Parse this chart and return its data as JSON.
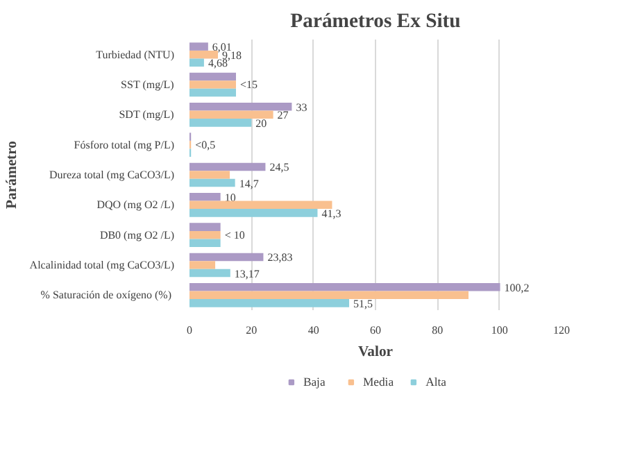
{
  "chart_data": {
    "type": "bar",
    "orientation": "horizontal",
    "title": "Parámetros Ex Situ",
    "xlabel": "Valor",
    "ylabel": "Parámetro",
    "categories": [
      "Turbiedad (NTU)",
      "SST (mg/L)",
      "SDT (mg/L)",
      "Fósforo total (mg P/L)",
      "Dureza total (mg CaCO3/L)",
      "DQO (mg O2 /L)",
      "DB0 (mg O2 /L)",
      "Alcalinidad total (mg CaCO3/L)",
      "% Saturación de oxígeno  (%)"
    ],
    "series": [
      {
        "name": "Baja",
        "color": "#ab9ac5",
        "values": [
          6.01,
          15,
          33,
          0.5,
          24.5,
          10,
          10,
          23.83,
          100.2
        ],
        "value_labels": [
          "6,01",
          null,
          "33",
          null,
          "24,5",
          "10",
          null,
          "23,83",
          "100,2"
        ]
      },
      {
        "name": "Media",
        "color": "#f9c08f",
        "values": [
          9.18,
          15,
          27,
          0.5,
          13,
          46,
          10,
          8.3,
          90
        ],
        "value_labels": [
          "9,18",
          "<15",
          "27",
          "<0,5",
          null,
          null,
          "< 10",
          null,
          null
        ]
      },
      {
        "name": "Alta",
        "color": "#8dcfdc",
        "values": [
          4.68,
          15,
          20,
          0.5,
          14.7,
          41.3,
          10,
          13.17,
          51.5
        ],
        "value_labels": [
          "4,68",
          null,
          "20",
          null,
          "14,7",
          "41,3",
          null,
          "13,17",
          "51,5"
        ]
      }
    ],
    "xlim": [
      0,
      120
    ],
    "xticks": [
      0,
      20,
      40,
      60,
      80,
      100,
      120
    ],
    "grid": "x",
    "legend": "bottom"
  }
}
